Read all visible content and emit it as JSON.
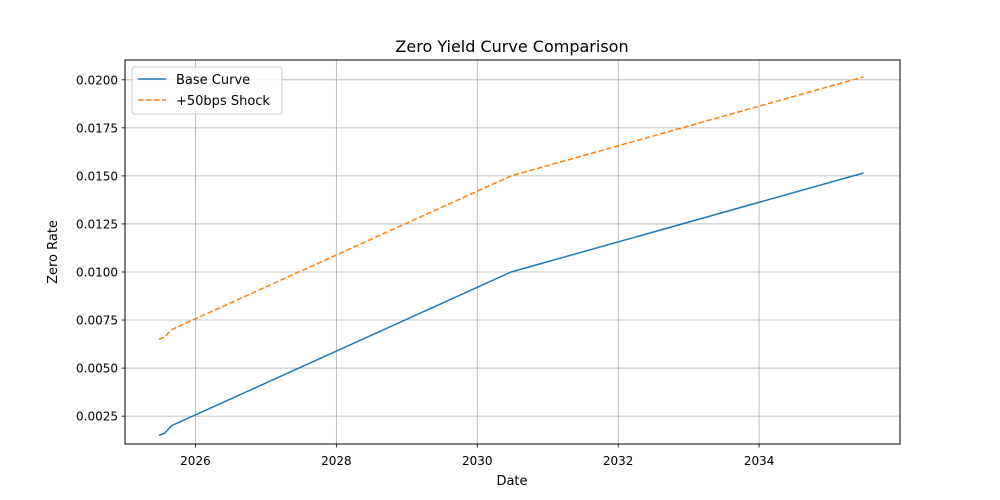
{
  "chart_data": {
    "type": "line",
    "title": "Zero Yield Curve Comparison",
    "xlabel": "Date",
    "ylabel": "Zero Rate",
    "xlim": [
      2025.0,
      2036.0
    ],
    "ylim": [
      0.00105,
      0.02103
    ],
    "x_ticks": [
      2026,
      2028,
      2030,
      2032,
      2034
    ],
    "x_tick_labels": [
      "2026",
      "2028",
      "2030",
      "2032",
      "2034"
    ],
    "y_ticks": [
      0.0025,
      0.005,
      0.0075,
      0.01,
      0.0125,
      0.015,
      0.0175,
      0.02
    ],
    "y_tick_labels": [
      "0.0025",
      "0.0050",
      "0.0075",
      "0.0100",
      "0.0125",
      "0.0150",
      "0.0175",
      "0.0200"
    ],
    "grid": true,
    "legend_position": "top-left",
    "series": [
      {
        "name": "Base Curve",
        "color": "#1f77b4",
        "style": "solid",
        "x": [
          2025.48,
          2025.56,
          2025.66,
          2030.48,
          2035.48
        ],
        "y": [
          0.0015,
          0.0016,
          0.002,
          0.01,
          0.01515
        ]
      },
      {
        "name": "+50bps Shock",
        "color": "#ff7f0e",
        "style": "dashed",
        "x": [
          2025.48,
          2025.56,
          2025.66,
          2030.48,
          2035.48
        ],
        "y": [
          0.0065,
          0.0066,
          0.007,
          0.015,
          0.02015
        ]
      }
    ]
  }
}
